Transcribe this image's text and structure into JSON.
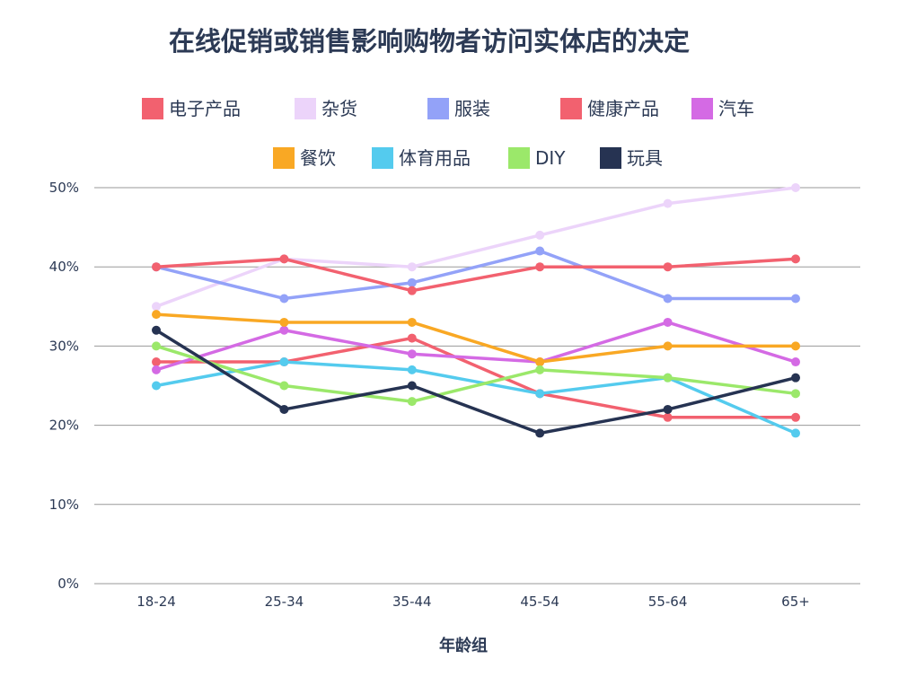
{
  "chart_data": {
    "type": "line",
    "title": "在线促销或销售影响购物者访问实体店的决定",
    "xlabel": "年龄组",
    "ylabel": "",
    "categories": [
      "18-24",
      "25-34",
      "35-44",
      "45-54",
      "55-64",
      "65+"
    ],
    "ylim": [
      0,
      50
    ],
    "yticks": [
      0,
      10,
      20,
      30,
      40,
      50
    ],
    "ytick_labels": [
      "0%",
      "10%",
      "20%",
      "30%",
      "40%",
      "50%"
    ],
    "grid": true,
    "legend_position": "top",
    "series": [
      {
        "name": "电子产品",
        "color": "#f2616f",
        "values": [
          28,
          28,
          31,
          24,
          21,
          21
        ]
      },
      {
        "name": "杂货",
        "color": "#ecd4fa",
        "values": [
          35,
          41,
          40,
          44,
          48,
          50
        ]
      },
      {
        "name": "服装",
        "color": "#93a2f8",
        "values": [
          40,
          36,
          38,
          42,
          36,
          36
        ]
      },
      {
        "name": "健康产品",
        "color": "#f2616f",
        "values": [
          40,
          41,
          37,
          40,
          40,
          41
        ]
      },
      {
        "name": "汽车",
        "color": "#d46ae4",
        "values": [
          27,
          32,
          29,
          28,
          33,
          28
        ]
      },
      {
        "name": "餐饮",
        "color": "#f9a824",
        "values": [
          34,
          33,
          33,
          28,
          30,
          30
        ]
      },
      {
        "name": "体育用品",
        "color": "#54cbee",
        "values": [
          25,
          28,
          27,
          24,
          26,
          19
        ]
      },
      {
        "name": "DIY",
        "color": "#9be86a",
        "values": [
          30,
          25,
          23,
          27,
          26,
          24
        ]
      },
      {
        "name": "玩具",
        "color": "#263352",
        "values": [
          32,
          22,
          25,
          19,
          22,
          26
        ]
      }
    ]
  }
}
